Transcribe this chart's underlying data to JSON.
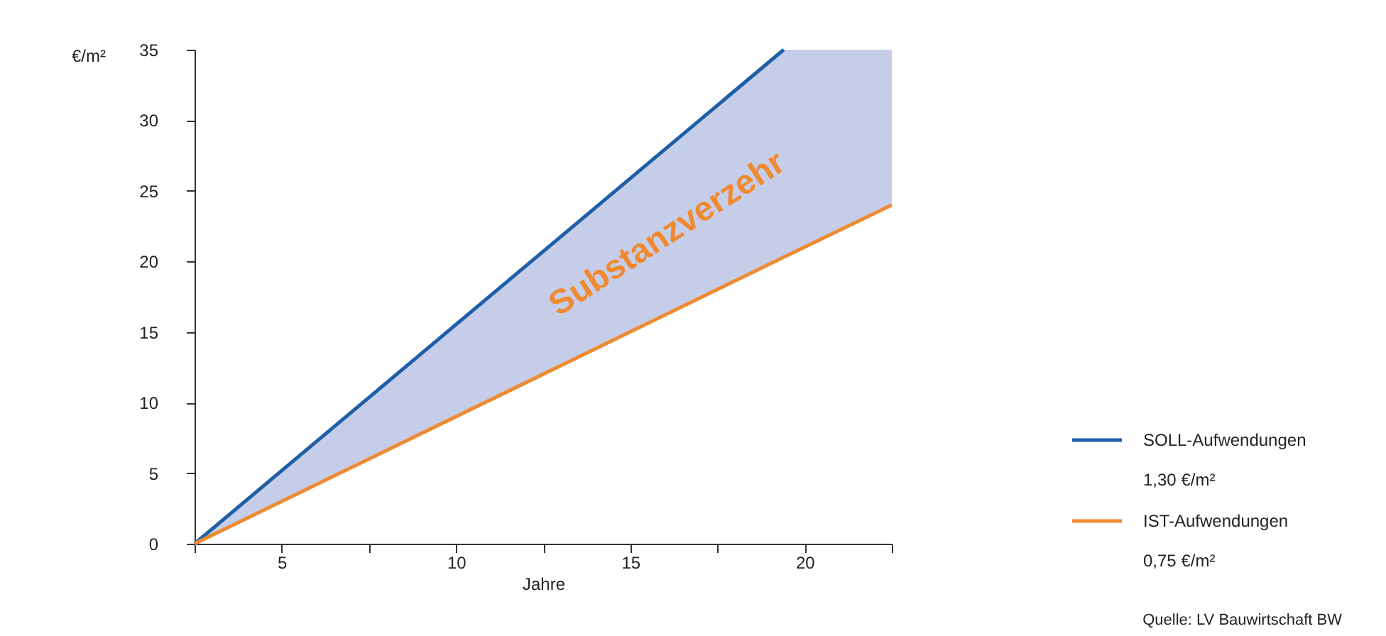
{
  "chart_data": {
    "type": "line",
    "ylabel": "€/m²",
    "xlabel": "Jahre",
    "xlim": [
      2.5,
      22.5
    ],
    "xticks": [
      {
        "value": 2.5,
        "label": null
      },
      5,
      {
        "value": 7.5,
        "label": null
      },
      10,
      {
        "value": 12.5,
        "label": null
      },
      15,
      {
        "value": 17.5,
        "label": null
      },
      20,
      {
        "value": 22.5,
        "label": null
      }
    ],
    "ylim": [
      0,
      35
    ],
    "yticks": [
      0,
      5,
      10,
      15,
      20,
      25,
      30,
      35
    ],
    "series": [
      {
        "type": "line",
        "name": "SOLL-Aufwendungen",
        "color": "#1f5fa8",
        "x": [
          2.5,
          19.4
        ],
        "values": [
          0,
          35
        ]
      },
      {
        "type": "line",
        "name": "IST-Aufwendungen",
        "color": "#f08a30",
        "x": [
          2.5,
          19.4,
          22.5
        ],
        "values": [
          0,
          20.3,
          24
        ],
        "lower": [
          0,
          20.3,
          24
        ],
        "upper": [
          0,
          35,
          35
        ]
      }
    ],
    "annotations": [
      "Substanzverzehr",
      "1,30 €/m²",
      "0,75 €/m²",
      "Quelle: LV Bauwirtschaft BW"
    ],
    "grid": false,
    "legend": "right",
    "line_style": "solid",
    "marker": "none"
  }
}
